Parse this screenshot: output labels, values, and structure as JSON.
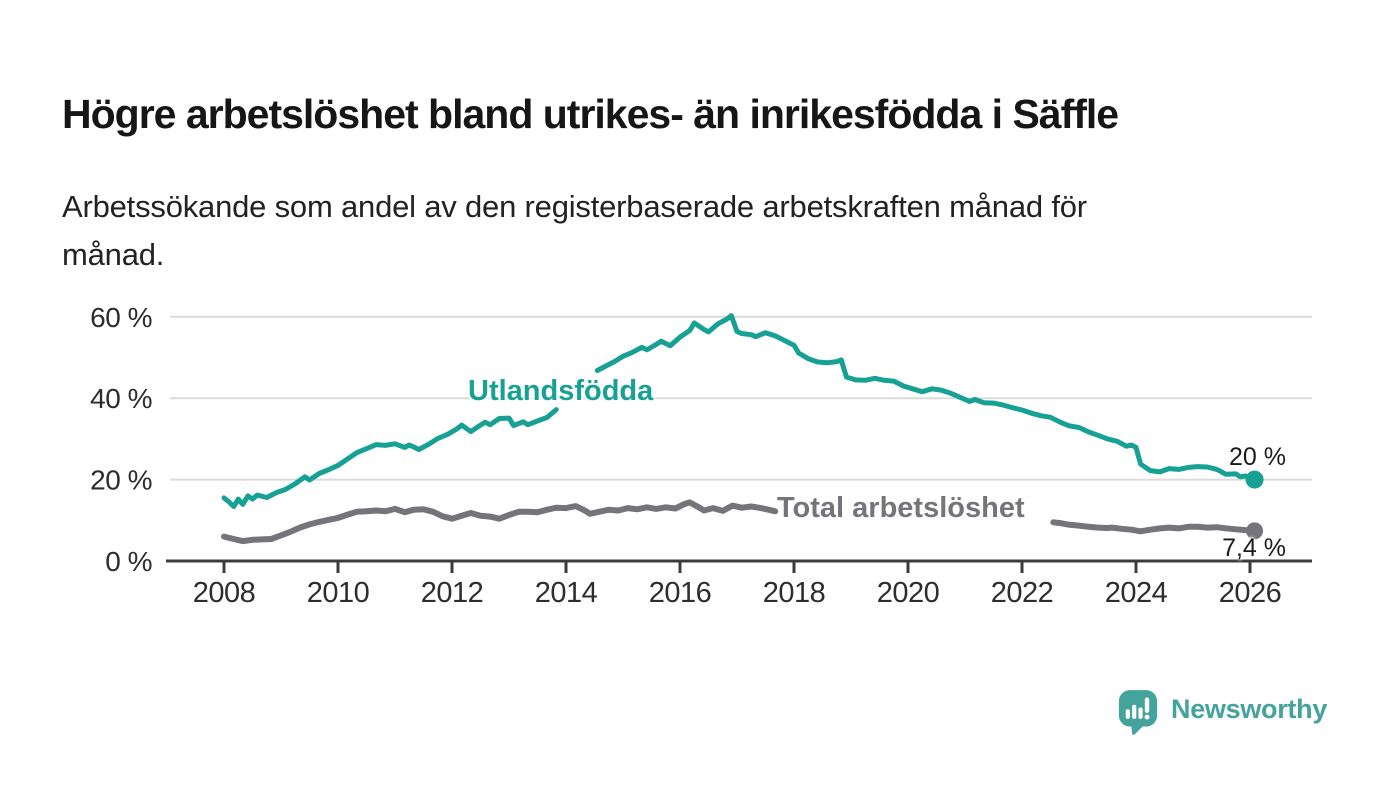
{
  "header": {
    "title": "Högre arbetslöshet bland utrikes- än inrikesfödda i Säffle",
    "subtitle_lines": [
      "Arbetssökande som andel av den registerbaserade arbetskraften månad för",
      "månad."
    ]
  },
  "footer": {
    "brand": "Newsworthy",
    "brand_color": "#45A39D"
  },
  "chart_data": {
    "type": "line",
    "title": "Högre arbetslöshet bland utrikes- än inrikesfödda i Säffle",
    "subtitle": "Arbetssökande som andel av den registerbaserade arbetskraften månad för månad.",
    "unit": "%",
    "grid": true,
    "legend_position": "inline-labels",
    "x_axis": {
      "range": [
        2007.0,
        2027.1
      ],
      "ticks": [
        {
          "v": 2008,
          "label": "2008"
        },
        {
          "v": 2010,
          "label": "2010"
        },
        {
          "v": 2012,
          "label": "2012"
        },
        {
          "v": 2014,
          "label": "2014"
        },
        {
          "v": 2016,
          "label": "2016"
        },
        {
          "v": 2018,
          "label": "2018"
        },
        {
          "v": 2020,
          "label": "2020"
        },
        {
          "v": 2022,
          "label": "2022"
        },
        {
          "v": 2024,
          "label": "2024"
        },
        {
          "v": 2026,
          "label": "2026"
        }
      ]
    },
    "y_axis": {
      "range": [
        0,
        62
      ],
      "ticks": [
        {
          "v": 0,
          "label": "0 %"
        },
        {
          "v": 20,
          "label": "20 %"
        },
        {
          "v": 40,
          "label": "40 %"
        },
        {
          "v": 60,
          "label": "60 %"
        }
      ]
    },
    "series": [
      {
        "name": "Utlandsfödda",
        "color": "#17A094",
        "end_label": "20 %",
        "end_value": 20,
        "segments": [
          [
            [
              2008.0,
              15.5
            ],
            [
              2008.08,
              14.6
            ],
            [
              2008.17,
              13.4
            ],
            [
              2008.25,
              15.2
            ],
            [
              2008.33,
              13.9
            ],
            [
              2008.42,
              16.0
            ],
            [
              2008.5,
              15.2
            ],
            [
              2008.58,
              16.2
            ],
            [
              2008.75,
              15.6
            ],
            [
              2008.92,
              16.8
            ],
            [
              2009.08,
              17.6
            ],
            [
              2009.25,
              19.0
            ],
            [
              2009.42,
              20.7
            ],
            [
              2009.5,
              19.9
            ],
            [
              2009.67,
              21.5
            ],
            [
              2009.83,
              22.4
            ],
            [
              2010.0,
              23.5
            ],
            [
              2010.17,
              25.1
            ],
            [
              2010.33,
              26.6
            ],
            [
              2010.5,
              27.6
            ],
            [
              2010.67,
              28.6
            ],
            [
              2010.83,
              28.4
            ],
            [
              2011.0,
              28.8
            ],
            [
              2011.17,
              27.9
            ],
            [
              2011.25,
              28.5
            ],
            [
              2011.42,
              27.4
            ],
            [
              2011.58,
              28.6
            ],
            [
              2011.75,
              30.1
            ],
            [
              2011.92,
              31.1
            ],
            [
              2012.08,
              32.4
            ],
            [
              2012.17,
              33.4
            ],
            [
              2012.33,
              31.8
            ],
            [
              2012.5,
              33.4
            ],
            [
              2012.58,
              34.1
            ],
            [
              2012.67,
              33.5
            ],
            [
              2012.83,
              35.0
            ],
            [
              2013.0,
              35.1
            ],
            [
              2013.08,
              33.3
            ],
            [
              2013.25,
              34.2
            ],
            [
              2013.33,
              33.5
            ],
            [
              2013.5,
              34.4
            ],
            [
              2013.67,
              35.3
            ],
            [
              2013.83,
              37.2
            ]
          ],
          [
            [
              2014.55,
              46.8
            ],
            [
              2014.7,
              47.9
            ],
            [
              2014.85,
              49.0
            ],
            [
              2015.0,
              50.3
            ],
            [
              2015.17,
              51.3
            ],
            [
              2015.33,
              52.5
            ],
            [
              2015.42,
              51.9
            ],
            [
              2015.58,
              53.2
            ],
            [
              2015.67,
              54.0
            ],
            [
              2015.83,
              52.9
            ],
            [
              2016.0,
              55.0
            ],
            [
              2016.17,
              56.6
            ],
            [
              2016.25,
              58.5
            ],
            [
              2016.42,
              56.9
            ],
            [
              2016.5,
              56.3
            ],
            [
              2016.67,
              58.3
            ],
            [
              2016.83,
              59.5
            ],
            [
              2016.9,
              60.3
            ],
            [
              2017.0,
              56.4
            ],
            [
              2017.08,
              55.9
            ],
            [
              2017.25,
              55.6
            ],
            [
              2017.33,
              55.1
            ],
            [
              2017.5,
              56.1
            ],
            [
              2017.67,
              55.3
            ],
            [
              2017.83,
              54.2
            ],
            [
              2018.0,
              53.0
            ],
            [
              2018.08,
              51.1
            ],
            [
              2018.25,
              49.7
            ],
            [
              2018.42,
              48.9
            ],
            [
              2018.58,
              48.7
            ],
            [
              2018.75,
              49.0
            ],
            [
              2018.83,
              49.4
            ],
            [
              2018.92,
              45.2
            ],
            [
              2019.08,
              44.5
            ],
            [
              2019.25,
              44.4
            ],
            [
              2019.42,
              44.9
            ],
            [
              2019.58,
              44.4
            ],
            [
              2019.75,
              44.2
            ],
            [
              2019.92,
              43.0
            ],
            [
              2020.08,
              42.3
            ],
            [
              2020.25,
              41.6
            ],
            [
              2020.42,
              42.3
            ],
            [
              2020.58,
              42.0
            ],
            [
              2020.75,
              41.2
            ],
            [
              2020.92,
              40.2
            ],
            [
              2021.08,
              39.2
            ],
            [
              2021.17,
              39.7
            ],
            [
              2021.33,
              38.9
            ],
            [
              2021.5,
              38.8
            ],
            [
              2021.67,
              38.3
            ],
            [
              2021.83,
              37.7
            ],
            [
              2022.0,
              37.1
            ],
            [
              2022.17,
              36.3
            ],
            [
              2022.33,
              35.7
            ],
            [
              2022.5,
              35.3
            ],
            [
              2022.67,
              34.1
            ],
            [
              2022.83,
              33.2
            ],
            [
              2023.0,
              32.8
            ],
            [
              2023.17,
              31.7
            ],
            [
              2023.33,
              30.9
            ],
            [
              2023.5,
              30.0
            ],
            [
              2023.67,
              29.4
            ],
            [
              2023.83,
              28.2
            ],
            [
              2023.92,
              28.5
            ],
            [
              2024.0,
              27.9
            ],
            [
              2024.08,
              23.8
            ],
            [
              2024.25,
              22.2
            ],
            [
              2024.42,
              21.9
            ],
            [
              2024.58,
              22.7
            ],
            [
              2024.75,
              22.5
            ],
            [
              2024.92,
              23.0
            ],
            [
              2025.08,
              23.2
            ],
            [
              2025.25,
              23.1
            ],
            [
              2025.42,
              22.5
            ],
            [
              2025.58,
              21.3
            ],
            [
              2025.75,
              21.4
            ],
            [
              2025.83,
              20.7
            ],
            [
              2025.92,
              20.9
            ],
            [
              2026.0,
              20.4
            ],
            [
              2026.08,
              20.0
            ]
          ]
        ]
      },
      {
        "name": "Total arbetslöshet",
        "color": "#76747B",
        "end_label": "7,4 %",
        "end_value": 7.4,
        "segments": [
          [
            [
              2008.0,
              6.0
            ],
            [
              2008.17,
              5.4
            ],
            [
              2008.33,
              4.9
            ],
            [
              2008.5,
              5.2
            ],
            [
              2008.67,
              5.3
            ],
            [
              2008.83,
              5.4
            ],
            [
              2009.0,
              6.3
            ],
            [
              2009.17,
              7.2
            ],
            [
              2009.33,
              8.2
            ],
            [
              2009.5,
              9.0
            ],
            [
              2009.67,
              9.6
            ],
            [
              2009.83,
              10.1
            ],
            [
              2010.0,
              10.6
            ],
            [
              2010.17,
              11.4
            ],
            [
              2010.33,
              12.1
            ],
            [
              2010.5,
              12.2
            ],
            [
              2010.67,
              12.4
            ],
            [
              2010.83,
              12.2
            ],
            [
              2011.0,
              12.8
            ],
            [
              2011.17,
              12.0
            ],
            [
              2011.33,
              12.6
            ],
            [
              2011.5,
              12.7
            ],
            [
              2011.67,
              12.1
            ],
            [
              2011.83,
              11.0
            ],
            [
              2012.0,
              10.4
            ],
            [
              2012.17,
              11.1
            ],
            [
              2012.33,
              11.8
            ],
            [
              2012.5,
              11.1
            ],
            [
              2012.67,
              10.9
            ],
            [
              2012.83,
              10.4
            ],
            [
              2013.0,
              11.3
            ],
            [
              2013.17,
              12.1
            ],
            [
              2013.33,
              12.1
            ],
            [
              2013.5,
              12.0
            ],
            [
              2013.67,
              12.6
            ],
            [
              2013.83,
              13.1
            ],
            [
              2014.0,
              13.0
            ],
            [
              2014.17,
              13.5
            ],
            [
              2014.33,
              12.4
            ],
            [
              2014.42,
              11.6
            ],
            [
              2014.58,
              12.1
            ],
            [
              2014.75,
              12.6
            ],
            [
              2014.92,
              12.4
            ],
            [
              2015.08,
              13.0
            ],
            [
              2015.25,
              12.7
            ],
            [
              2015.42,
              13.2
            ],
            [
              2015.58,
              12.8
            ],
            [
              2015.75,
              13.2
            ],
            [
              2015.92,
              12.9
            ],
            [
              2016.08,
              14.0
            ],
            [
              2016.17,
              14.4
            ],
            [
              2016.33,
              13.2
            ],
            [
              2016.42,
              12.4
            ],
            [
              2016.58,
              13.0
            ],
            [
              2016.75,
              12.3
            ],
            [
              2016.92,
              13.6
            ],
            [
              2017.08,
              13.1
            ],
            [
              2017.25,
              13.4
            ],
            [
              2017.42,
              13.0
            ],
            [
              2017.58,
              12.5
            ],
            [
              2017.67,
              12.2
            ]
          ],
          [
            [
              2022.55,
              9.5
            ],
            [
              2022.67,
              9.3
            ],
            [
              2022.83,
              8.9
            ],
            [
              2023.0,
              8.7
            ],
            [
              2023.17,
              8.4
            ],
            [
              2023.33,
              8.2
            ],
            [
              2023.5,
              8.1
            ],
            [
              2023.58,
              8.2
            ],
            [
              2023.75,
              7.9
            ],
            [
              2023.92,
              7.7
            ],
            [
              2024.08,
              7.3
            ],
            [
              2024.25,
              7.7
            ],
            [
              2024.42,
              8.0
            ],
            [
              2024.58,
              8.2
            ],
            [
              2024.75,
              8.0
            ],
            [
              2024.92,
              8.4
            ],
            [
              2025.08,
              8.4
            ],
            [
              2025.25,
              8.2
            ],
            [
              2025.42,
              8.3
            ],
            [
              2025.58,
              8.0
            ],
            [
              2025.75,
              7.8
            ],
            [
              2025.92,
              7.6
            ],
            [
              2026.08,
              7.4
            ]
          ]
        ]
      }
    ],
    "colors": {
      "gridline": "#DBDBDB",
      "axis": "#3C3C3C",
      "tick_text": "#2D2D2D",
      "annotation_text": "#1C1C1C"
    }
  }
}
